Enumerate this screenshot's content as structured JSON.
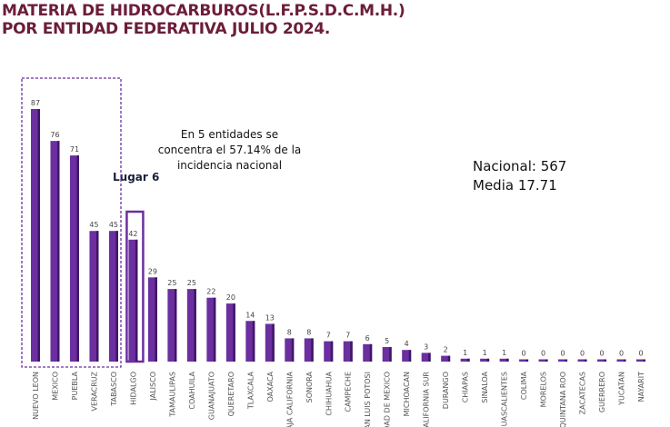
{
  "title_lines": [
    "MATERIA DE HIDROCARBUROS(L.F.P.S.D.C.M.H.)",
    "POR ENTIDAD FEDERATIVA JULIO 2024."
  ],
  "annotation_lines": [
    "En 5 entidades se",
    "concentra el 57.14% de la",
    "incidencia  nacional"
  ],
  "highlight_label": "Lugar 6",
  "summary": {
    "nacional": "Nacional: 567",
    "media": "Media 17.71"
  },
  "colors": {
    "bar": "#6b2fa0",
    "bar_dark": "#3f1766",
    "title": "#6b1d3a",
    "highlight_box": "#6b2fa0"
  },
  "chart_data": {
    "type": "bar",
    "categories": [
      "NUEVO LEON",
      "MEXICO",
      "PUEBLA",
      "VERACRUZ",
      "TABASCO",
      "HIDALGO",
      "JALISCO",
      "TAMAULIPAS",
      "COAHUILA",
      "GUANAJUATO",
      "QUERETARO",
      "TLAXCALA",
      "OAXACA",
      "AJA CALIFORNIA",
      "SONORA",
      "CHIHUAHUA",
      "CAMPECHE",
      "AN LUIS POTOSI",
      "DAD DE MEXICO",
      "MICHOACAN",
      "CALIFORNIA SUR",
      "DURANGO",
      "CHIAPAS",
      "SINALOA",
      "GUASCALIENTES",
      "COLIMA",
      "MORELOS",
      "QUINTANA ROO",
      "ZACATECAS",
      "GUERRERO",
      "YUCATAN",
      "NAYARIT"
    ],
    "values": [
      87,
      76,
      71,
      45,
      45,
      42,
      29,
      25,
      25,
      22,
      20,
      14,
      13,
      8,
      8,
      7,
      7,
      6,
      5,
      4,
      3,
      2,
      1,
      1,
      1,
      0,
      0,
      0,
      0,
      0,
      0,
      0
    ],
    "ylim": [
      0,
      100
    ],
    "grid": false,
    "data_labels": true,
    "highlight_group": [
      "NUEVO LEON",
      "MEXICO",
      "PUEBLA",
      "VERACRUZ",
      "TABASCO"
    ],
    "highlight_single": "HIDALGO"
  }
}
